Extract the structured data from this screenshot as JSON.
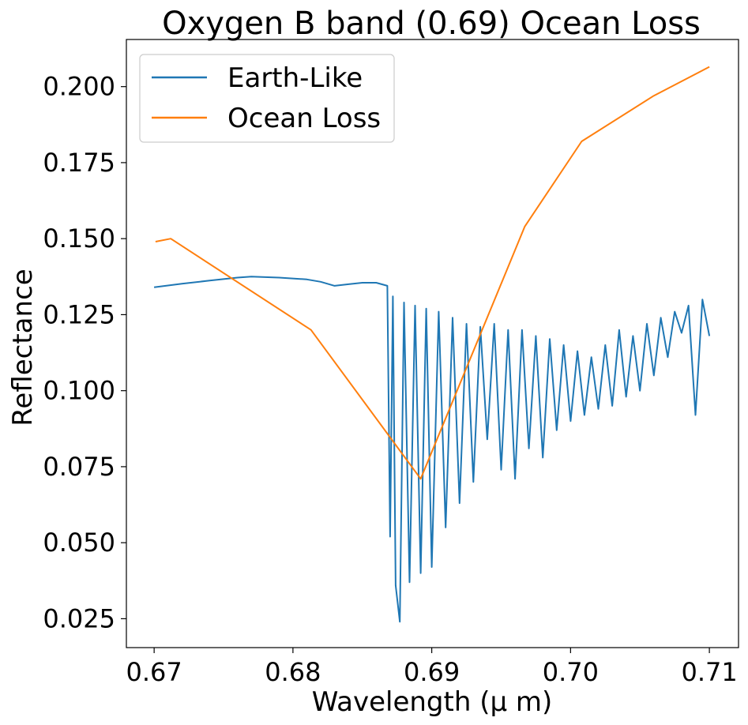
{
  "chart_data": {
    "type": "line",
    "title": "Oxygen B band (0.69) Ocean Loss",
    "xlabel": "Wavelength (μ m)",
    "ylabel": "Reflectance",
    "xlim": [
      0.668,
      0.7121
    ],
    "ylim": [
      0.0155,
      0.2155
    ],
    "xticks": [
      0.67,
      0.68,
      0.69,
      0.7,
      0.71
    ],
    "xtick_labels": [
      "0.67",
      "0.68",
      "0.69",
      "0.70",
      "0.71"
    ],
    "yticks": [
      0.025,
      0.05,
      0.075,
      0.1,
      0.125,
      0.15,
      0.175,
      0.2
    ],
    "ytick_labels": [
      "0.025",
      "0.050",
      "0.075",
      "0.100",
      "0.125",
      "0.150",
      "0.175",
      "0.200"
    ],
    "grid": false,
    "legend_position": "upper-left",
    "series": [
      {
        "name": "Earth-Like",
        "color": "#1f77b4",
        "x": [
          0.67,
          0.672,
          0.674,
          0.676,
          0.677,
          0.679,
          0.681,
          0.682,
          0.683,
          0.684,
          0.685,
          0.686,
          0.6868,
          0.687,
          0.6872,
          0.6874,
          0.6877,
          0.688,
          0.6884,
          0.6888,
          0.6892,
          0.6896,
          0.69,
          0.6905,
          0.691,
          0.6915,
          0.692,
          0.6925,
          0.693,
          0.6935,
          0.694,
          0.6945,
          0.695,
          0.6955,
          0.696,
          0.6965,
          0.697,
          0.6975,
          0.698,
          0.6985,
          0.699,
          0.6995,
          0.7,
          0.7005,
          0.701,
          0.7015,
          0.702,
          0.7025,
          0.703,
          0.7035,
          0.704,
          0.7045,
          0.705,
          0.7055,
          0.706,
          0.7065,
          0.707,
          0.7075,
          0.708,
          0.7085,
          0.709,
          0.7095,
          0.71
        ],
        "y": [
          0.134,
          0.1352,
          0.1362,
          0.1372,
          0.1375,
          0.1372,
          0.1366,
          0.1358,
          0.1345,
          0.135,
          0.1355,
          0.1355,
          0.1345,
          0.052,
          0.131,
          0.036,
          0.024,
          0.129,
          0.037,
          0.128,
          0.04,
          0.127,
          0.042,
          0.126,
          0.055,
          0.124,
          0.063,
          0.122,
          0.07,
          0.121,
          0.084,
          0.122,
          0.074,
          0.12,
          0.071,
          0.12,
          0.081,
          0.118,
          0.078,
          0.117,
          0.087,
          0.115,
          0.09,
          0.113,
          0.092,
          0.111,
          0.094,
          0.115,
          0.095,
          0.12,
          0.098,
          0.118,
          0.1,
          0.122,
          0.105,
          0.124,
          0.111,
          0.126,
          0.119,
          0.128,
          0.092,
          0.13,
          0.118
        ]
      },
      {
        "name": "Ocean Loss",
        "color": "#ff7f0e",
        "x": [
          0.6701,
          0.6712,
          0.6813,
          0.6892,
          0.6967,
          0.7008,
          0.706,
          0.71
        ],
        "y": [
          0.149,
          0.15,
          0.12,
          0.071,
          0.154,
          0.182,
          0.197,
          0.2065
        ]
      }
    ]
  }
}
